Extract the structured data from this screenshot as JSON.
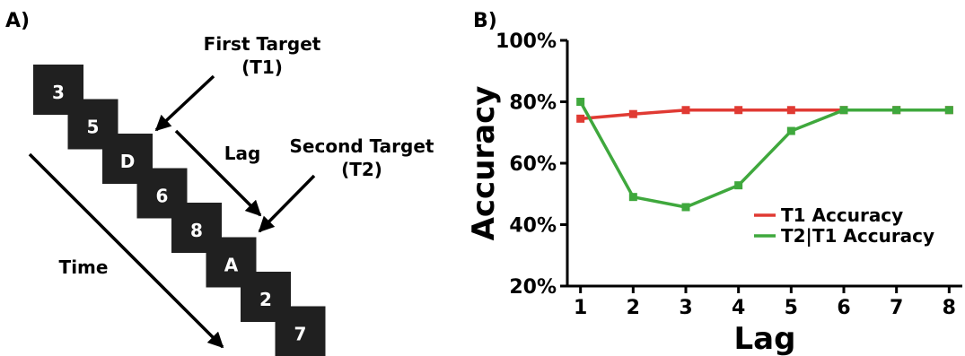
{
  "panel_a": {
    "label": "A)",
    "stimuli": [
      "3",
      "5",
      "D",
      "6",
      "8",
      "A",
      "2",
      "7"
    ],
    "first_target": [
      "First Target",
      "(T1)"
    ],
    "second_target": [
      "Second Target",
      "(T2)"
    ],
    "lag_label": "Lag",
    "time_label": "Time",
    "colors": {
      "box": "#202020",
      "box_text": "#ffffff",
      "arrow": "#000000"
    }
  },
  "panel_b": {
    "label": "B)"
  },
  "chart_data": {
    "type": "line",
    "title": "",
    "xlabel": "Lag",
    "ylabel": "Accuracy",
    "x": [
      1,
      2,
      3,
      4,
      5,
      6,
      7,
      8
    ],
    "xlim": [
      0.75,
      8.25
    ],
    "ylim": [
      20,
      100
    ],
    "yticks": [
      20,
      40,
      60,
      80,
      100
    ],
    "ytick_labels": [
      "20%",
      "40%",
      "60%",
      "80%",
      "100%"
    ],
    "xtick_labels": [
      "1",
      "2",
      "3",
      "4",
      "5",
      "6",
      "7",
      "8"
    ],
    "grid": false,
    "legend_position": "lower-right",
    "series": [
      {
        "name": "T1 Accuracy",
        "color": "#e03a33",
        "values": [
          74.5,
          76,
          77.3,
          77.3,
          77.3,
          77.3,
          77.3,
          77.3
        ]
      },
      {
        "name": "T2|T1 Accuracy",
        "color": "#3fa83d",
        "values": [
          80,
          49,
          45.7,
          52.8,
          70.5,
          77.3,
          77.3,
          77.3
        ]
      }
    ]
  }
}
